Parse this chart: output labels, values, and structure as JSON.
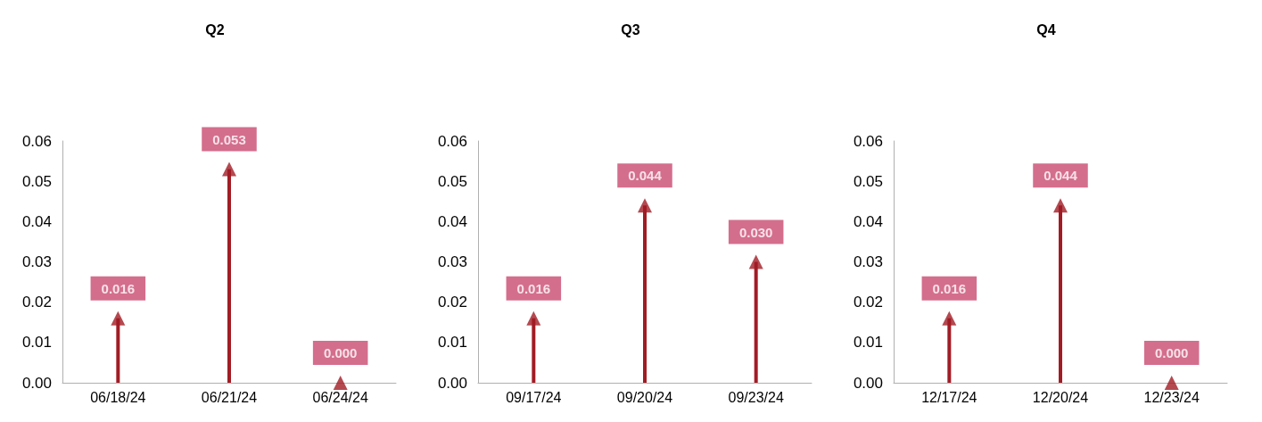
{
  "chart_data": [
    {
      "type": "lollipop",
      "title": "Q2",
      "categories": [
        "06/18/24",
        "06/21/24",
        "06/24/24"
      ],
      "values": [
        0.016,
        0.053,
        0.0
      ],
      "value_labels": [
        "0.016",
        "0.053",
        "0.000"
      ],
      "color": "#a11c24",
      "marker": "triangle",
      "ylim": [
        0,
        0.06
      ],
      "yticks": [
        {
          "value": 0,
          "label": "0.00"
        },
        {
          "value": 0.01,
          "label": "0.01"
        },
        {
          "value": 0.02,
          "label": "0.02"
        },
        {
          "value": 0.03,
          "label": "0.03"
        },
        {
          "value": 0.04,
          "label": "0.04"
        },
        {
          "value": 0.05,
          "label": "0.05"
        },
        {
          "value": 0.06,
          "label": "0.06"
        }
      ]
    },
    {
      "type": "lollipop",
      "title": "Q3",
      "categories": [
        "09/17/24",
        "09/20/24",
        "09/23/24"
      ],
      "values": [
        0.016,
        0.044,
        0.03
      ],
      "value_labels": [
        "0.016",
        "0.044",
        "0.030"
      ],
      "color": "#a11c24",
      "marker": "triangle",
      "ylim": [
        0,
        0.06
      ],
      "yticks": [
        {
          "value": 0,
          "label": "0.00"
        },
        {
          "value": 0.01,
          "label": "0.01"
        },
        {
          "value": 0.02,
          "label": "0.02"
        },
        {
          "value": 0.03,
          "label": "0.03"
        },
        {
          "value": 0.04,
          "label": "0.04"
        },
        {
          "value": 0.05,
          "label": "0.05"
        },
        {
          "value": 0.06,
          "label": "0.06"
        }
      ]
    },
    {
      "type": "lollipop",
      "title": "Q4",
      "categories": [
        "12/17/24",
        "12/20/24",
        "12/23/24"
      ],
      "values": [
        0.016,
        0.044,
        0.0
      ],
      "value_labels": [
        "0.016",
        "0.044",
        "0.000"
      ],
      "color": "#a11c24",
      "marker": "triangle",
      "ylim": [
        0,
        0.06
      ],
      "yticks": [
        {
          "value": 0,
          "label": "0.00"
        },
        {
          "value": 0.01,
          "label": "0.01"
        },
        {
          "value": 0.02,
          "label": "0.02"
        },
        {
          "value": 0.03,
          "label": "0.03"
        },
        {
          "value": 0.04,
          "label": "0.04"
        },
        {
          "value": 0.05,
          "label": "0.05"
        },
        {
          "value": 0.06,
          "label": "0.06"
        }
      ]
    }
  ]
}
